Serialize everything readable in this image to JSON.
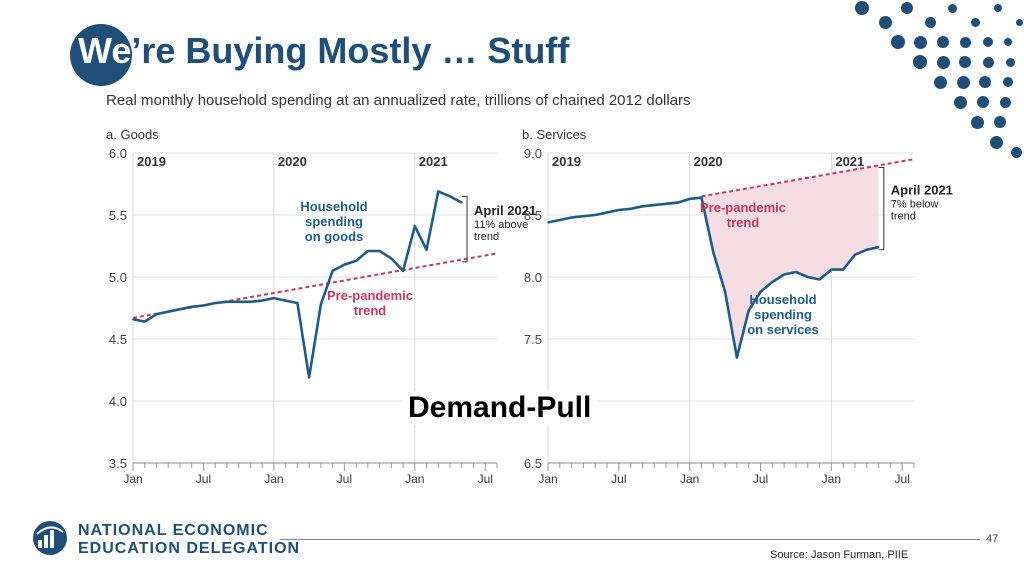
{
  "slide": {
    "title_we": "We",
    "title_rest": "’re Buying Mostly … Stuff",
    "subtitle": "Real monthly household spending at an annualized rate, trillions of chained 2012 dollars",
    "overlay": "Demand-Pull",
    "page_number": "47",
    "source": "Source: Jason Furman, PIIE",
    "org_line1": "NATIONAL ECONOMIC",
    "org_line2": "EDUCATION DELEGATION"
  },
  "colors": {
    "brand": "#1f4e79",
    "line": "#1f5b8a",
    "trend": "#c8365a",
    "fill": "#f6dde4",
    "annot_pink": "#c8365a",
    "annot_blue": "#1f5b8a"
  },
  "chart_data": [
    {
      "type": "line",
      "panel_title": "a. Goods",
      "ylim": [
        3.5,
        6.0
      ],
      "yticks": [
        "6.0",
        "5.5",
        "5.0",
        "4.5",
        "4.0",
        "3.5"
      ],
      "year_labels": [
        "2019",
        "2020",
        "2021"
      ],
      "month_labels": [
        "Jan",
        "Jul",
        "Jan",
        "Jul",
        "Jan",
        "Jul"
      ],
      "x": [
        "2019-01",
        "2019-02",
        "2019-03",
        "2019-04",
        "2019-05",
        "2019-06",
        "2019-07",
        "2019-08",
        "2019-09",
        "2019-10",
        "2019-11",
        "2019-12",
        "2020-01",
        "2020-02",
        "2020-03",
        "2020-04",
        "2020-05",
        "2020-06",
        "2020-07",
        "2020-08",
        "2020-09",
        "2020-10",
        "2020-11",
        "2020-12",
        "2021-01",
        "2021-02",
        "2021-03",
        "2021-04",
        "2021-05"
      ],
      "series": [
        {
          "values": [
            4.66,
            4.64,
            4.7,
            4.72,
            4.74,
            4.76,
            4.77,
            4.79,
            4.8,
            4.8,
            4.8,
            4.81,
            4.83,
            4.81,
            4.79,
            4.19,
            4.78,
            5.05,
            5.1,
            5.13,
            5.21,
            5.21,
            5.15,
            5.05,
            5.41,
            5.22,
            5.69,
            5.65,
            5.6
          ]
        }
      ],
      "trend": {
        "start": [
          "2019-01",
          4.67
        ],
        "end": [
          "2021-08",
          5.19
        ]
      },
      "annotations": {
        "series_label": [
          "Household",
          "spending",
          "on goods"
        ],
        "trend_label": [
          "Pre-pandemic",
          "trend"
        ],
        "callout_title": "April 2021",
        "callout_body": [
          "11% above",
          "trend"
        ]
      }
    },
    {
      "type": "line",
      "panel_title": "b. Services",
      "ylim": [
        6.5,
        9.0
      ],
      "yticks": [
        "9.0",
        "8.5",
        "8.0",
        "7.5",
        "7.0",
        "6.5"
      ],
      "year_labels": [
        "2019",
        "2020",
        "2021"
      ],
      "month_labels": [
        "Jan",
        "Jul",
        "Jan",
        "Jul",
        "Jan",
        "Jul"
      ],
      "x": [
        "2019-01",
        "2019-02",
        "2019-03",
        "2019-04",
        "2019-05",
        "2019-06",
        "2019-07",
        "2019-08",
        "2019-09",
        "2019-10",
        "2019-11",
        "2019-12",
        "2020-01",
        "2020-02",
        "2020-03",
        "2020-04",
        "2020-05",
        "2020-06",
        "2020-07",
        "2020-08",
        "2020-09",
        "2020-10",
        "2020-11",
        "2020-12",
        "2021-01",
        "2021-02",
        "2021-03",
        "2021-04",
        "2021-05"
      ],
      "series": [
        {
          "values": [
            8.44,
            8.46,
            8.48,
            8.49,
            8.5,
            8.52,
            8.54,
            8.55,
            8.57,
            8.58,
            8.59,
            8.6,
            8.63,
            8.64,
            8.2,
            7.88,
            7.35,
            7.73,
            7.88,
            7.96,
            8.02,
            8.04,
            8.0,
            7.98,
            8.06,
            8.06,
            8.18,
            8.22,
            8.24
          ]
        }
      ],
      "trend": {
        "start": [
          "2020-02",
          8.65
        ],
        "end": [
          "2021-08",
          8.95
        ]
      },
      "annotations": {
        "series_label": [
          "Household",
          "spending",
          "on services"
        ],
        "trend_label": [
          "Pre-pandemic",
          "trend"
        ],
        "callout_title": "April 2021",
        "callout_body": [
          "7% below",
          "trend"
        ]
      }
    }
  ]
}
